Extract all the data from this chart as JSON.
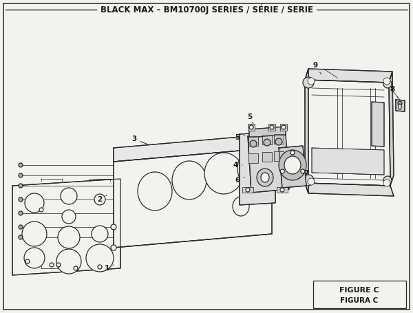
{
  "title": "BLACK MAX – BM10700J SERIES / SÉRIE / SERIE",
  "figure_label": "FIGURE C",
  "figura_label": "FIGURA C",
  "bg_color": "#f2f2ee",
  "border_color": "#2a2a2a",
  "text_color": "#1a1a1a",
  "title_fontsize": 8.5,
  "label_fontsize": 7.5,
  "figure_label_fontsize": 8
}
